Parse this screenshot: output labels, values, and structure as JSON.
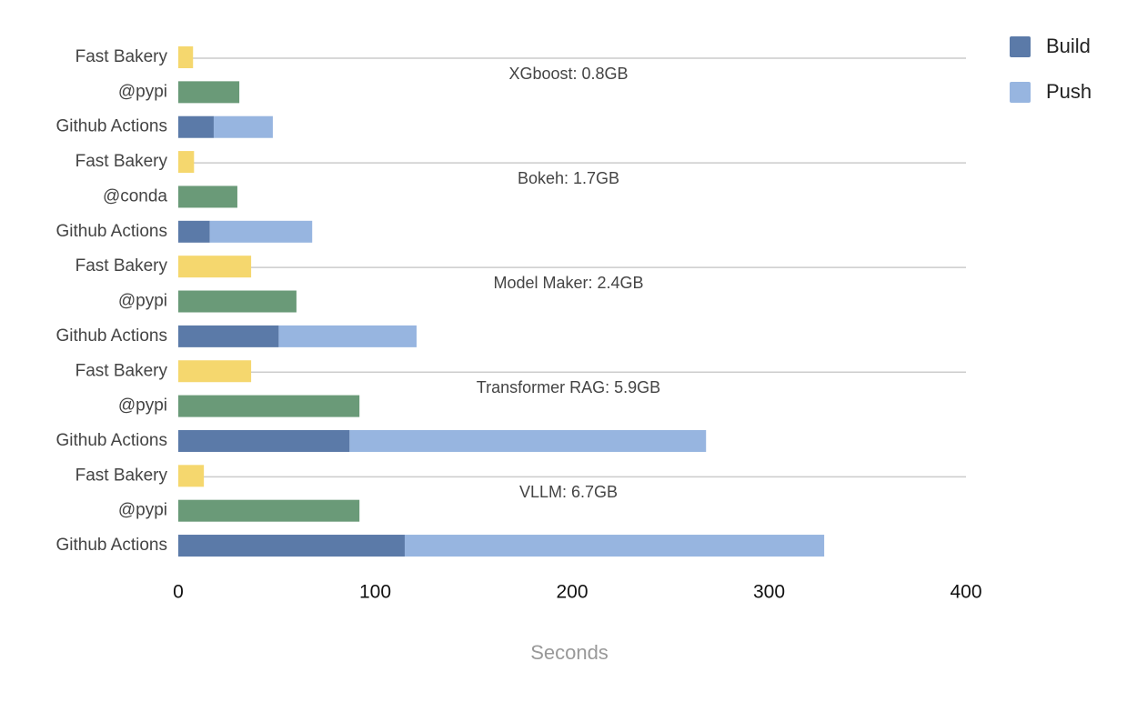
{
  "chart_data": {
    "type": "stacked-hbar",
    "categories": [
      "Fast Bakery",
      "@pypi",
      "Github Actions",
      "Fast Bakery",
      "@conda",
      "Github Actions",
      "Fast Bakery",
      "@pypi",
      "Github Actions",
      "Fast Bakery",
      "@pypi",
      "Github Actions",
      "Fast Bakery",
      "@pypi",
      "Github Actions"
    ],
    "group_labels": [
      "XGboost: 0.8GB",
      "Bokeh: 1.7GB",
      "Model Maker: 2.4GB",
      "Transformer RAG: 5.9GB",
      "VLLM: 6.7GB"
    ],
    "series": [
      {
        "name": "Build",
        "color": "#5b7aa8",
        "values": [
          null,
          null,
          18,
          null,
          null,
          16,
          null,
          null,
          51,
          null,
          null,
          87,
          null,
          null,
          115
        ]
      },
      {
        "name": "Push",
        "color": "#97b5e0",
        "values": [
          null,
          null,
          30,
          null,
          null,
          52,
          null,
          null,
          70,
          null,
          null,
          181,
          null,
          null,
          213
        ]
      },
      {
        "color": "#f5d76e",
        "values": [
          7.5,
          null,
          null,
          8,
          null,
          null,
          37,
          null,
          null,
          37,
          null,
          null,
          13,
          null,
          null
        ]
      },
      {
        "color": "#6a9a78",
        "values": [
          null,
          31,
          null,
          null,
          30,
          null,
          null,
          60,
          null,
          null,
          92,
          null,
          null,
          92,
          null
        ]
      }
    ],
    "xlim": [
      0,
      400
    ],
    "xticks": [
      0,
      100,
      200,
      300,
      400
    ],
    "xlabel": "Seconds",
    "legend": "top-right"
  }
}
